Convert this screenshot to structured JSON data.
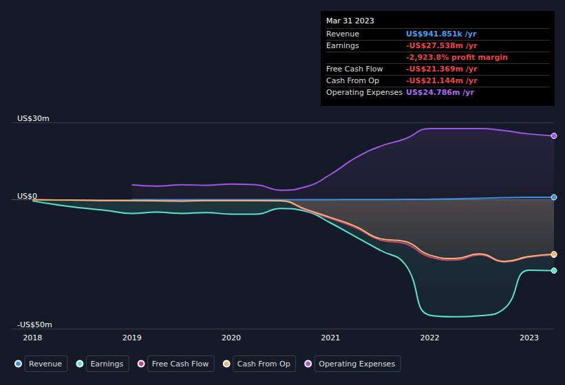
{
  "chart_data": {
    "type": "line",
    "x": [
      2018,
      2018.25,
      2018.5,
      2018.75,
      2019,
      2019.25,
      2019.5,
      2019.75,
      2020,
      2020.25,
      2020.5,
      2020.75,
      2021,
      2021.25,
      2021.5,
      2021.75,
      2022,
      2022.25,
      2022.5,
      2022.75,
      2023,
      2023.25
    ],
    "series": [
      {
        "name": "Revenue",
        "color": "#3b8fe6",
        "values": [
          null,
          null,
          null,
          null,
          0,
          0,
          0,
          0,
          0.01,
          0.01,
          0.02,
          0.02,
          0.03,
          0.05,
          0.08,
          0.12,
          0.2,
          0.35,
          0.55,
          0.8,
          0.92,
          0.94
        ]
      },
      {
        "name": "Earnings",
        "color": "#5de3cf",
        "values": [
          -0.5,
          -2,
          -3.2,
          -4.2,
          -5.3,
          -4.8,
          -5.3,
          -5.0,
          -5.6,
          -5.6,
          -3.4,
          -4.5,
          -9,
          -14.3,
          -19.6,
          -25,
          -44.8,
          -45.4,
          -45,
          -42.2,
          -27.3,
          -27.5
        ]
      },
      {
        "name": "Free Cash Flow",
        "color": "#c8457c",
        "values": [
          0,
          -0.1,
          -0.2,
          -0.3,
          -0.4,
          -0.5,
          -0.6,
          -0.4,
          -0.4,
          -0.4,
          -0.5,
          -4,
          -7.3,
          -10.8,
          -15.6,
          -17,
          -22.2,
          -23.4,
          -21.4,
          -24.2,
          -22.3,
          -21.4
        ]
      },
      {
        "name": "Cash From Op",
        "color": "#f2b56e",
        "values": [
          0,
          -0.1,
          -0.2,
          -0.3,
          -0.3,
          -0.4,
          -0.5,
          -0.3,
          -0.3,
          -0.3,
          -0.4,
          -3.7,
          -6.9,
          -10.3,
          -15.1,
          -16.2,
          -21.5,
          -22.8,
          -21,
          -23.9,
          -22,
          -21.1
        ]
      },
      {
        "name": "Operating Expenses",
        "color": "#a455e8",
        "values": [
          null,
          null,
          null,
          null,
          5.8,
          5.3,
          5.8,
          5.6,
          6.1,
          5.8,
          3.7,
          5,
          9.8,
          16.2,
          20.7,
          23.6,
          27.6,
          27.6,
          27.6,
          26.8,
          25.5,
          24.8
        ]
      }
    ],
    "xlim": [
      2017.79,
      2023.25
    ],
    "xticks": [
      2018,
      2019,
      2020,
      2021,
      2022,
      2023
    ],
    "ylim": [
      -50,
      30
    ],
    "yticks": [
      {
        "value": -50,
        "label": "-US$50m"
      },
      {
        "value": 0,
        "label": "US$0"
      },
      {
        "value": 30,
        "label": "US$30m"
      }
    ],
    "grid": true,
    "legend": "bottom",
    "annotation": {
      "title": "Mar 31 2023",
      "rows": [
        {
          "label": "Revenue",
          "value": "US$941.851k /yr",
          "color": "#4a9cf0"
        },
        {
          "label": "Earnings",
          "value": "-US$27.538m /yr",
          "color": "#e8464a"
        },
        {
          "value": "-2,923.8% profit margin",
          "color": "#e8464a"
        },
        {
          "label": "Free Cash Flow",
          "value": "-US$21.369m /yr",
          "color": "#e8464a"
        },
        {
          "label": "Cash From Op",
          "value": "-US$21.144m /yr",
          "color": "#e8464a"
        },
        {
          "label": "Operating Expenses",
          "value": "US$24.786m /yr",
          "color": "#a86cf5"
        }
      ]
    }
  }
}
